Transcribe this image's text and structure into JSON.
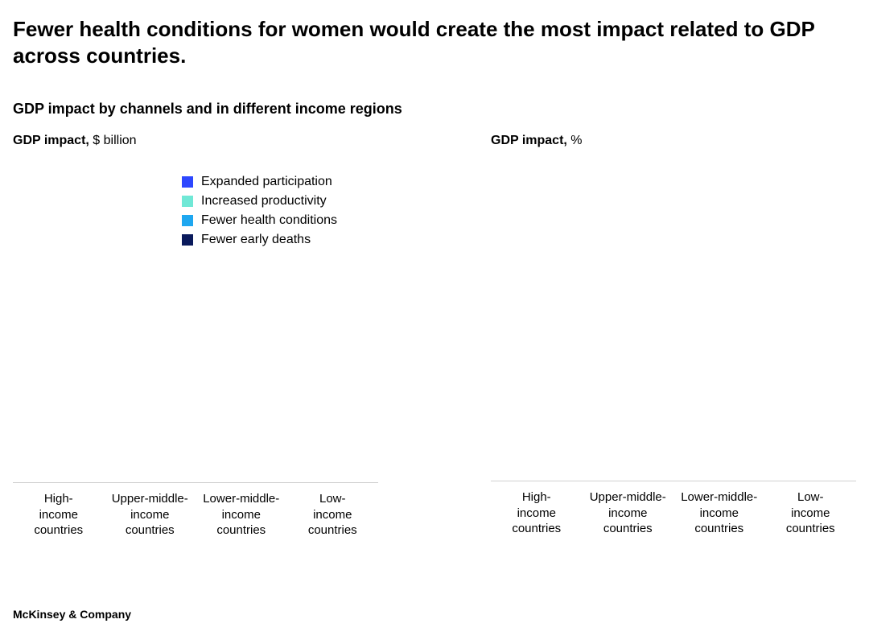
{
  "headline": "Fewer health conditions for women would create the most impact related to GDP across countries.",
  "subtitle": "GDP impact by channels and in different income regions",
  "chart_left": {
    "axis_label_bold": "GDP impact,",
    "axis_label_unit": " $ billion",
    "type": "stacked_bar_placeholder",
    "legend": [
      {
        "label": "Expanded participation",
        "color": "#2d47ff"
      },
      {
        "label": "Increased productivity",
        "color": "#70e8d6"
      },
      {
        "label": "Fewer health conditions",
        "color": "#1ea7f0"
      },
      {
        "label": "Fewer early deaths",
        "color": "#0a1a5c"
      }
    ],
    "categories": [
      "High-\nincome\ncountries",
      "Upper-middle-\nincome\ncountries",
      "Lower-middle-\nincome\ncountries",
      "Low-\nincome\ncountries"
    ],
    "baseline_color": "#d0d0d0"
  },
  "chart_right": {
    "axis_label_bold": "GDP impact,",
    "axis_label_unit": " %",
    "type": "stacked_bar_placeholder",
    "categories": [
      "High-\nincome\ncountries",
      "Upper-middle-\nincome\ncountries",
      "Lower-middle-\nincome\ncountries",
      "Low-\nincome\ncountries"
    ],
    "baseline_color": "#d0d0d0"
  },
  "source": "McKinsey & Company",
  "style": {
    "background": "#ffffff",
    "text_color": "#000000",
    "headline_fontsize": 26,
    "subtitle_fontsize": 18,
    "axis_title_fontsize": 16,
    "legend_fontsize": 16,
    "xticklabel_fontsize": 15,
    "footer_fontsize": 14
  }
}
